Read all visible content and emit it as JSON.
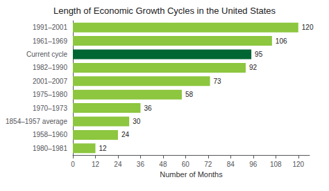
{
  "chart_data": {
    "type": "bar",
    "orientation": "horizontal",
    "title": "Length of Economic Growth Cycles in the United States",
    "xlabel": "Number of Months",
    "categories": [
      "1980–1981",
      "1958–1960",
      "1854–1957 average",
      "1970–1973",
      "1975–1980",
      "2001–2007",
      "1982–1990",
      "Current cycle",
      "1961–1969",
      "1991–2001"
    ],
    "values": [
      12,
      24,
      30,
      36,
      58,
      73,
      92,
      95,
      106,
      120
    ],
    "colors": [
      "#8dc63f",
      "#8dc63f",
      "#8dc63f",
      "#8dc63f",
      "#8dc63f",
      "#8dc63f",
      "#8dc63f",
      "#006633",
      "#8dc63f",
      "#8dc63f"
    ],
    "xlim": [
      0,
      126
    ],
    "xticks": [
      0,
      12,
      24,
      36,
      48,
      60,
      72,
      84,
      96,
      108,
      120
    ],
    "data_labels": true,
    "grid": false
  }
}
